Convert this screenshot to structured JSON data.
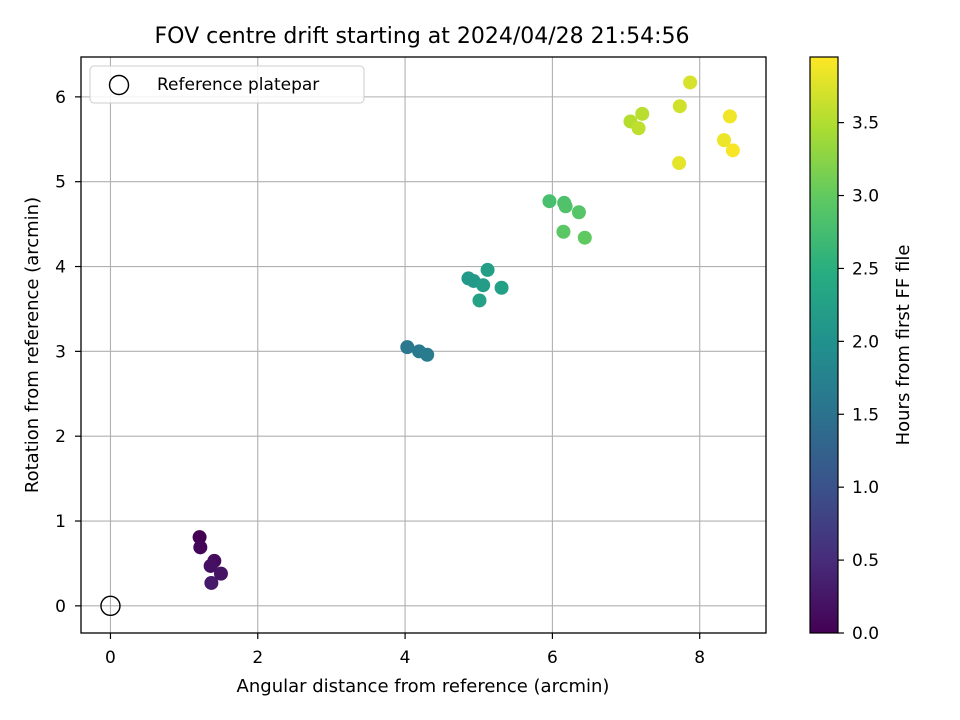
{
  "chart_data": {
    "type": "scatter",
    "title": "FOV centre drift starting at 2024/04/28 21:54:56",
    "xlabel": "Angular distance from reference (arcmin)",
    "ylabel": "Rotation from reference (arcmin)",
    "xlim": [
      -0.4,
      8.9
    ],
    "ylim": [
      -0.32,
      6.47
    ],
    "xticks": [
      0,
      2,
      4,
      6,
      8
    ],
    "yticks": [
      0,
      1,
      2,
      3,
      4,
      5,
      6
    ],
    "grid": true,
    "legend": {
      "position": "top-left",
      "entries": [
        "Reference platepar"
      ]
    },
    "reference_point": {
      "x": 0,
      "y": 0,
      "label": "Reference platepar",
      "marker": "open-circle"
    },
    "colorbar": {
      "label": "Hours from first FF file",
      "colormap": "viridis",
      "range": [
        0.0,
        3.95
      ],
      "ticks": [
        "0.0",
        "0.5",
        "1.0",
        "1.5",
        "2.0",
        "2.5",
        "3.0",
        "3.5"
      ]
    },
    "points": [
      {
        "x": 1.21,
        "y": 0.81,
        "hours": 0.0
      },
      {
        "x": 1.22,
        "y": 0.69,
        "hours": 0.06
      },
      {
        "x": 1.41,
        "y": 0.53,
        "hours": 0.12
      },
      {
        "x": 1.36,
        "y": 0.47,
        "hours": 0.17
      },
      {
        "x": 1.5,
        "y": 0.38,
        "hours": 0.22
      },
      {
        "x": 1.37,
        "y": 0.27,
        "hours": 0.28
      },
      {
        "x": 4.03,
        "y": 3.05,
        "hours": 1.58
      },
      {
        "x": 4.19,
        "y": 3.0,
        "hours": 1.62
      },
      {
        "x": 4.3,
        "y": 2.96,
        "hours": 1.66
      },
      {
        "x": 4.86,
        "y": 3.86,
        "hours": 2.12
      },
      {
        "x": 4.93,
        "y": 3.83,
        "hours": 2.15
      },
      {
        "x": 5.06,
        "y": 3.78,
        "hours": 2.18
      },
      {
        "x": 5.12,
        "y": 3.96,
        "hours": 2.21
      },
      {
        "x": 5.31,
        "y": 3.75,
        "hours": 2.24
      },
      {
        "x": 5.01,
        "y": 3.6,
        "hours": 2.27
      },
      {
        "x": 5.96,
        "y": 4.77,
        "hours": 2.78
      },
      {
        "x": 6.16,
        "y": 4.75,
        "hours": 2.82
      },
      {
        "x": 6.18,
        "y": 4.71,
        "hours": 2.86
      },
      {
        "x": 6.36,
        "y": 4.64,
        "hours": 2.9
      },
      {
        "x": 6.15,
        "y": 4.41,
        "hours": 2.94
      },
      {
        "x": 6.44,
        "y": 4.34,
        "hours": 2.98
      },
      {
        "x": 7.06,
        "y": 5.71,
        "hours": 3.52
      },
      {
        "x": 7.22,
        "y": 5.8,
        "hours": 3.55
      },
      {
        "x": 7.17,
        "y": 5.63,
        "hours": 3.58
      },
      {
        "x": 7.73,
        "y": 5.89,
        "hours": 3.68
      },
      {
        "x": 7.87,
        "y": 6.17,
        "hours": 3.72
      },
      {
        "x": 7.72,
        "y": 5.22,
        "hours": 3.8
      },
      {
        "x": 8.33,
        "y": 5.49,
        "hours": 3.85
      },
      {
        "x": 8.41,
        "y": 5.77,
        "hours": 3.88
      },
      {
        "x": 8.45,
        "y": 5.37,
        "hours": 3.92
      }
    ]
  }
}
